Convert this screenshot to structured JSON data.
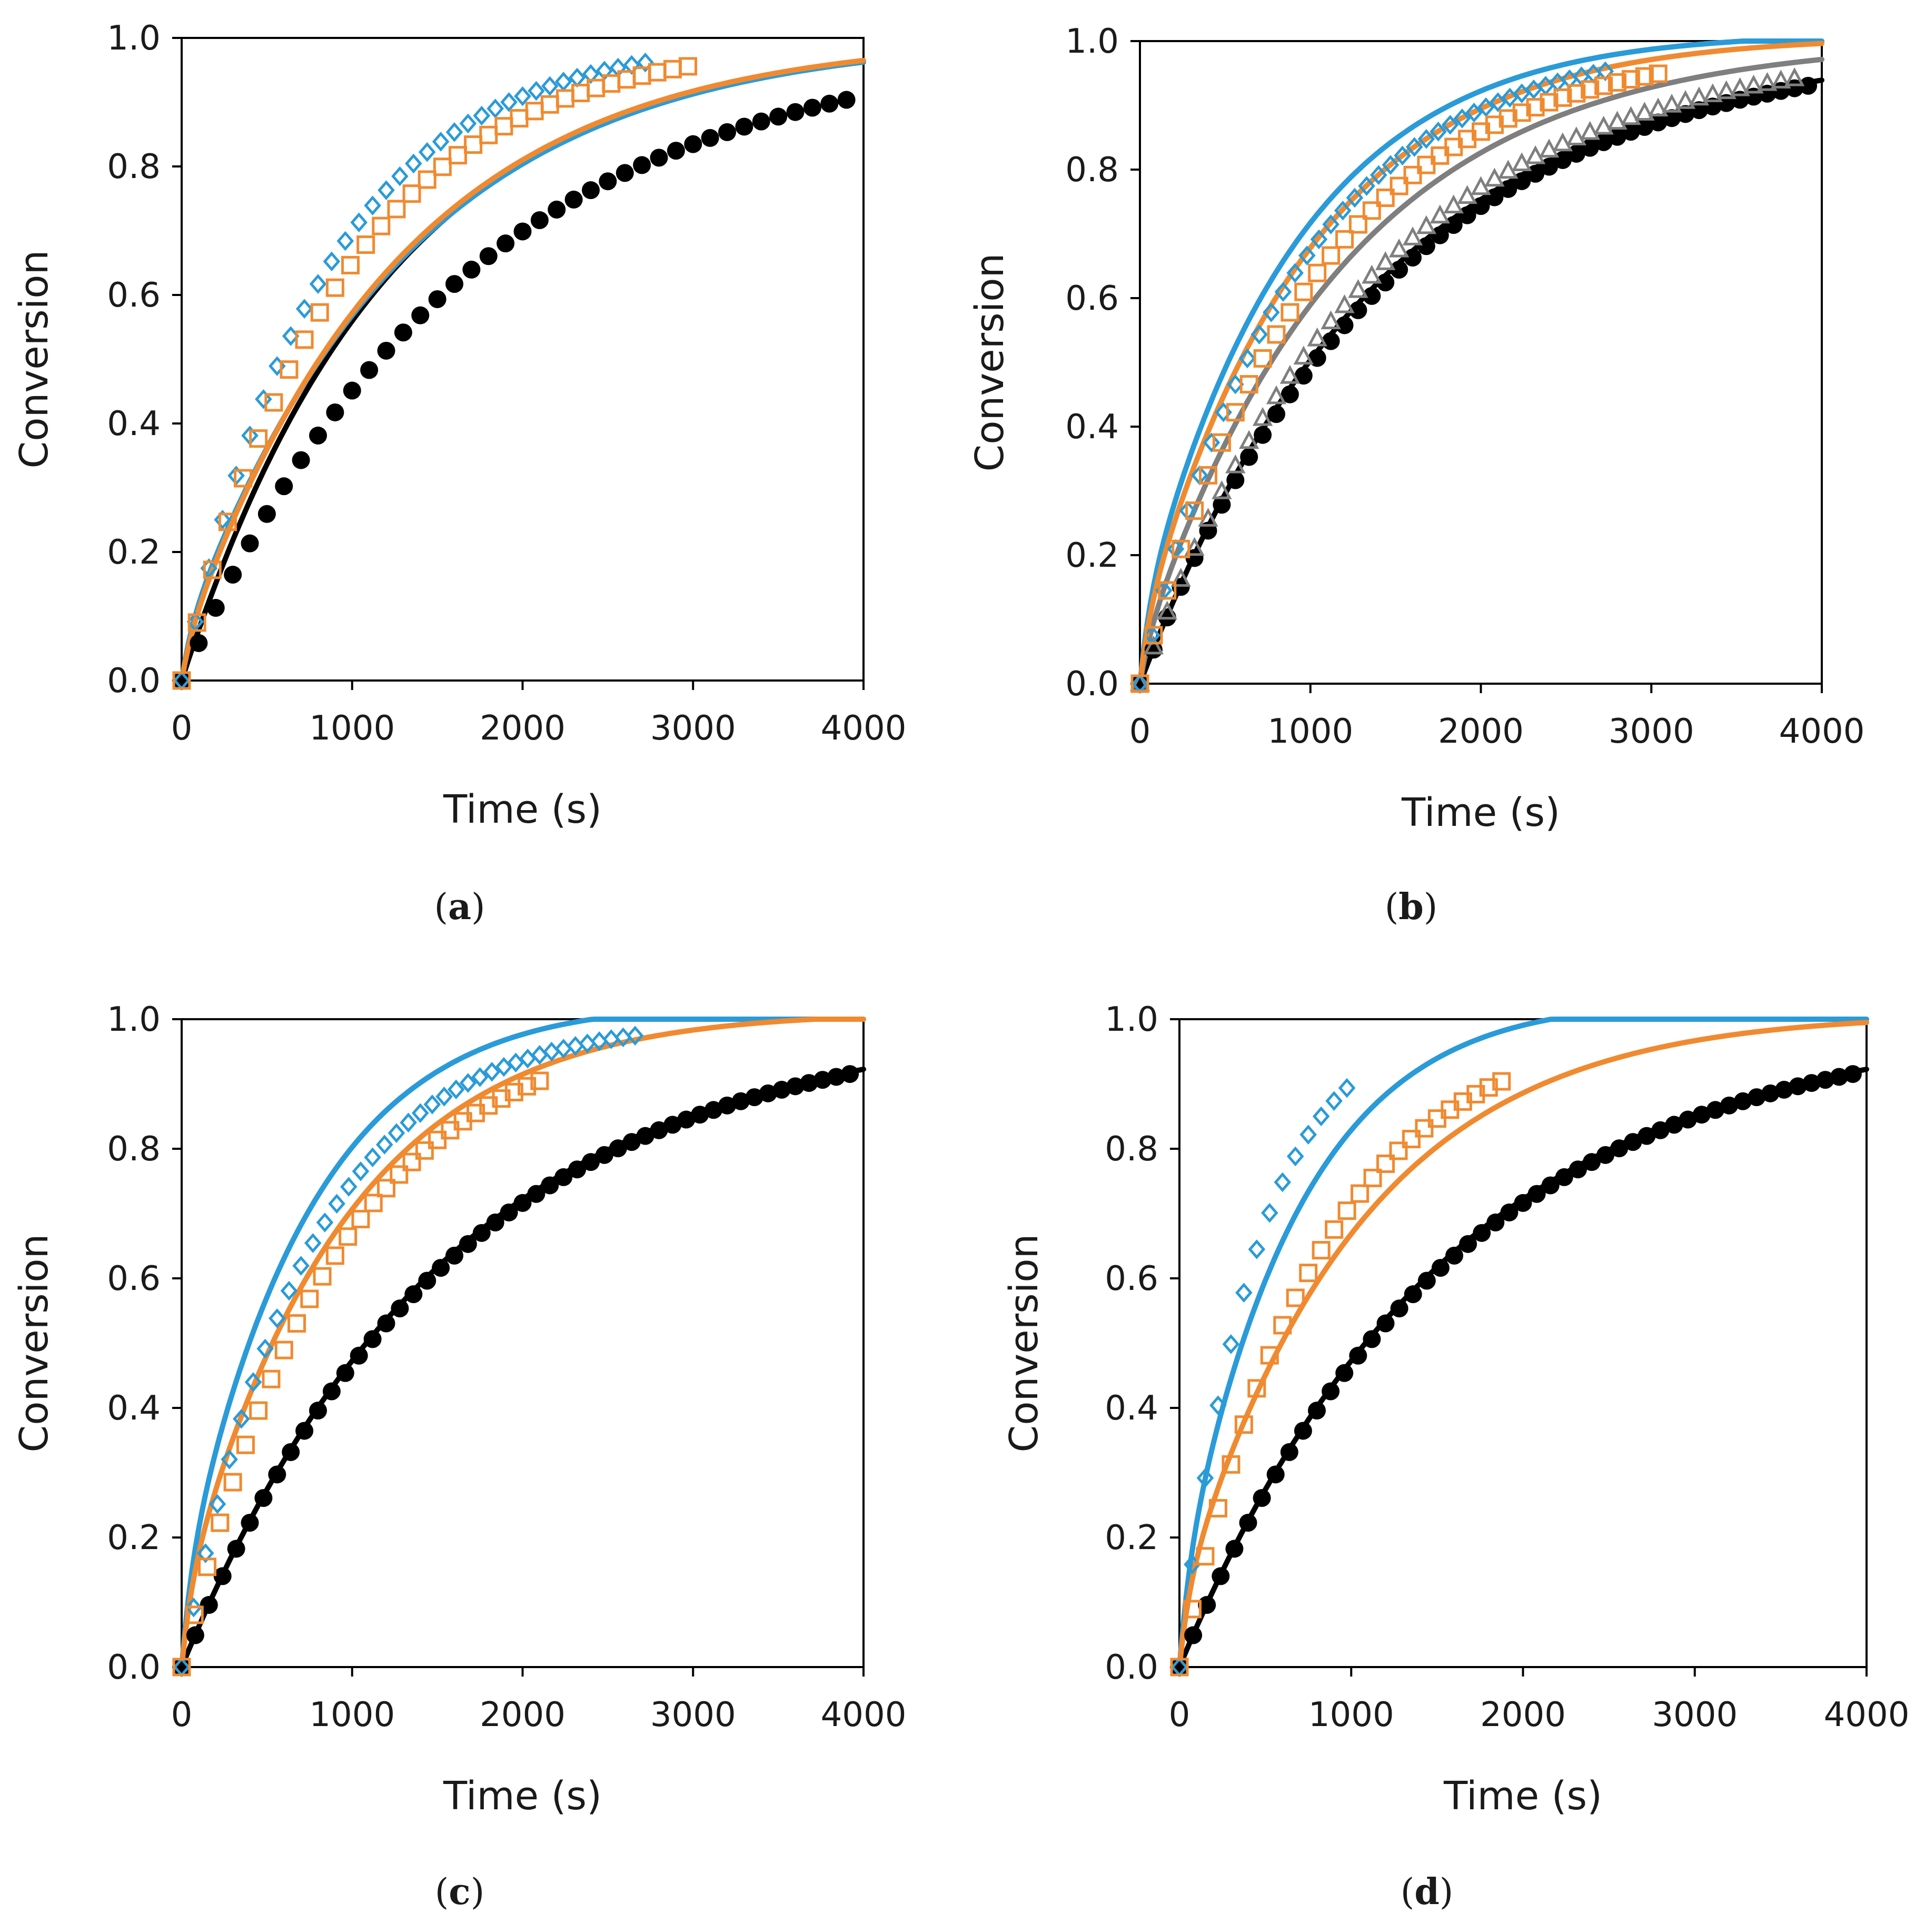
{
  "colors": {
    "black": "#000000",
    "blue": "#2a9bd8",
    "orange": "#f08a30",
    "gray": "#7f7f7f"
  },
  "chart_data": [
    {
      "type": "scatter",
      "panel": "a",
      "caption": "(a)",
      "xlabel": "Time (s)",
      "ylabel": "Conversion",
      "xlim": [
        0,
        4000
      ],
      "ylim": [
        0,
        1.0
      ],
      "xticks": [
        "0",
        "1000",
        "2000",
        "3000",
        "4000"
      ],
      "yticks": [
        "0.0",
        "0.2",
        "0.4",
        "0.6",
        "0.8",
        "1.0"
      ],
      "grid": false,
      "series": [
        {
          "name": "black data",
          "color": "black",
          "marker": "circle",
          "k": 0.0006,
          "tmax": 3900,
          "dt": 100
        },
        {
          "name": "black fit",
          "color": "black",
          "marker": "line",
          "k": 0.00082
        },
        {
          "name": "blue data",
          "color": "blue",
          "marker": "diamond",
          "k": 0.0012,
          "tmax": 2750,
          "dt": 80
        },
        {
          "name": "blue fit",
          "color": "blue",
          "marker": "line",
          "k": 0.00075,
          "a": 0.06
        },
        {
          "name": "orange data",
          "color": "orange",
          "marker": "square",
          "k": 0.00105,
          "tmax": 3000,
          "dt": 90
        },
        {
          "name": "orange fit",
          "color": "orange",
          "marker": "line",
          "k": 0.00078,
          "a": 0.045
        }
      ]
    },
    {
      "type": "scatter",
      "panel": "b",
      "caption": "(b)",
      "xlabel": "Time (s)",
      "ylabel": "Conversion",
      "xlim": [
        0,
        4000
      ],
      "ylim": [
        0,
        1.0
      ],
      "xticks": [
        "0",
        "1000",
        "2000",
        "3000",
        "4000"
      ],
      "yticks": [
        "0.0",
        "0.2",
        "0.4",
        "0.6",
        "0.8",
        "1.0"
      ],
      "grid": false,
      "series": [
        {
          "name": "black data",
          "color": "black",
          "marker": "circle",
          "k": 0.00068,
          "tmax": 3950,
          "dt": 80
        },
        {
          "name": "black fit",
          "color": "black",
          "marker": "line",
          "k": 0.0007
        },
        {
          "name": "gray data",
          "color": "gray",
          "marker": "triangle",
          "k": 0.00074,
          "tmax": 3900,
          "dt": 80
        },
        {
          "name": "gray fit",
          "color": "gray",
          "marker": "line",
          "k": 0.00082,
          "a": 0.045
        },
        {
          "name": "blue data",
          "color": "blue",
          "marker": "diamond",
          "k": 0.00112,
          "tmax": 2750,
          "dt": 70
        },
        {
          "name": "blue fit",
          "color": "blue",
          "marker": "line",
          "k": 0.00105,
          "a": 0.1
        },
        {
          "name": "orange data",
          "color": "orange",
          "marker": "square",
          "k": 0.00098,
          "tmax": 3100,
          "dt": 80
        },
        {
          "name": "orange fit",
          "color": "orange",
          "marker": "line",
          "k": 0.00098,
          "a": 0.08
        }
      ]
    },
    {
      "type": "scatter",
      "panel": "c",
      "caption": "(c)",
      "xlabel": "Time (s)",
      "ylabel": "Conversion",
      "xlim": [
        0,
        4000
      ],
      "ylim": [
        0,
        1.0
      ],
      "xticks": [
        "0",
        "1000",
        "2000",
        "3000",
        "4000"
      ],
      "yticks": [
        "0.0",
        "0.2",
        "0.4",
        "0.6",
        "0.8",
        "1.0"
      ],
      "grid": false,
      "series": [
        {
          "name": "black data",
          "color": "black",
          "marker": "circle",
          "k": 0.00063,
          "tmax": 3950,
          "dt": 80
        },
        {
          "name": "black fit",
          "color": "black",
          "marker": "line",
          "k": 0.00064
        },
        {
          "name": "blue data",
          "color": "blue",
          "marker": "diamond",
          "k": 0.00138,
          "tmax": 2700,
          "dt": 70
        },
        {
          "name": "blue fit",
          "color": "blue",
          "marker": "line",
          "k": 0.00128,
          "a": 0.12
        },
        {
          "name": "orange data",
          "color": "orange",
          "marker": "square",
          "k": 0.00112,
          "tmax": 2150,
          "dt": 75
        },
        {
          "name": "orange fit",
          "color": "orange",
          "marker": "line",
          "k": 0.00102,
          "a": 0.1
        }
      ]
    },
    {
      "type": "scatter",
      "panel": "d",
      "caption": "(d)",
      "xlabel": "Time (s)",
      "ylabel": "Conversion",
      "xlim": [
        0,
        4000
      ],
      "ylim": [
        0,
        1.0
      ],
      "xticks": [
        "0",
        "1000",
        "2000",
        "3000",
        "4000"
      ],
      "yticks": [
        "0.0",
        "0.2",
        "0.4",
        "0.6",
        "0.8",
        "1.0"
      ],
      "grid": false,
      "series": [
        {
          "name": "black data",
          "color": "black",
          "marker": "circle",
          "k": 0.00063,
          "tmax": 3950,
          "dt": 80
        },
        {
          "name": "black fit",
          "color": "black",
          "marker": "line",
          "k": 0.00064
        },
        {
          "name": "blue data",
          "color": "blue",
          "marker": "diamond",
          "k": 0.0023,
          "tmax": 1000,
          "dt": 75
        },
        {
          "name": "blue fit",
          "color": "blue",
          "marker": "line",
          "k": 0.00138,
          "a": 0.12
        },
        {
          "name": "orange data",
          "color": "orange",
          "marker": "square",
          "k": 0.00125,
          "tmax": 1920,
          "dt": 75
        },
        {
          "name": "orange fit",
          "color": "orange",
          "marker": "line",
          "k": 0.00092,
          "a": 0.1
        }
      ]
    }
  ]
}
